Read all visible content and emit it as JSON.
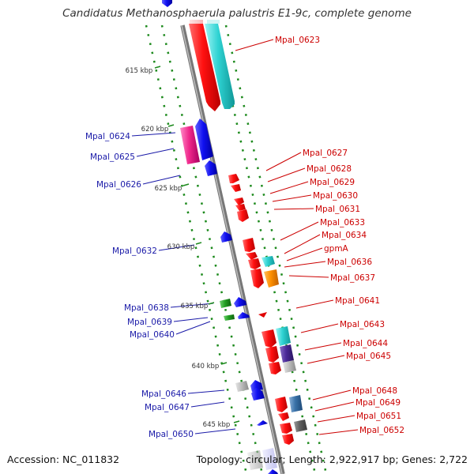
{
  "title": "Candidatus Methanosphaerula palustris E1-9c, complete genome",
  "accession": "Accession: NC_011832",
  "footer": "Topology: circular; Length: 2,922,917 bp; Genes: 2,722",
  "colors": {
    "backbone": "#999999",
    "dots": "#1d8a1d",
    "right_label": "#cc0000",
    "left_label": "#1a1aa8"
  },
  "ticks": [
    {
      "text": "615 kbp"
    },
    {
      "text": "620 kbp"
    },
    {
      "text": "625 kbp"
    },
    {
      "text": "630 kbp"
    },
    {
      "text": "635 kbp"
    },
    {
      "text": "640 kbp"
    },
    {
      "text": "645 kbp"
    }
  ],
  "right_labels": [
    {
      "text": "Mpal_0623"
    },
    {
      "text": "Mpal_0627"
    },
    {
      "text": "Mpal_0628"
    },
    {
      "text": "Mpal_0629"
    },
    {
      "text": "Mpal_0630"
    },
    {
      "text": "Mpal_0631"
    },
    {
      "text": "Mpal_0633"
    },
    {
      "text": "Mpal_0634"
    },
    {
      "text": "gpmA"
    },
    {
      "text": "Mpal_0636"
    },
    {
      "text": "Mpal_0637"
    },
    {
      "text": "Mpal_0641"
    },
    {
      "text": "Mpal_0643"
    },
    {
      "text": "Mpal_0644"
    },
    {
      "text": "Mpal_0645"
    },
    {
      "text": "Mpal_0648"
    },
    {
      "text": "Mpal_0649"
    },
    {
      "text": "Mpal_0651"
    },
    {
      "text": "Mpal_0652"
    }
  ],
  "left_labels": [
    {
      "text": "Mpal_0624"
    },
    {
      "text": "Mpal_0625"
    },
    {
      "text": "Mpal_0626"
    },
    {
      "text": "Mpal_0632"
    },
    {
      "text": "Mpal_0638"
    },
    {
      "text": "Mpal_0639"
    },
    {
      "text": "Mpal_0640"
    },
    {
      "text": "Mpal_0646"
    },
    {
      "text": "Mpal_0647"
    },
    {
      "text": "Mpal_0650"
    }
  ]
}
